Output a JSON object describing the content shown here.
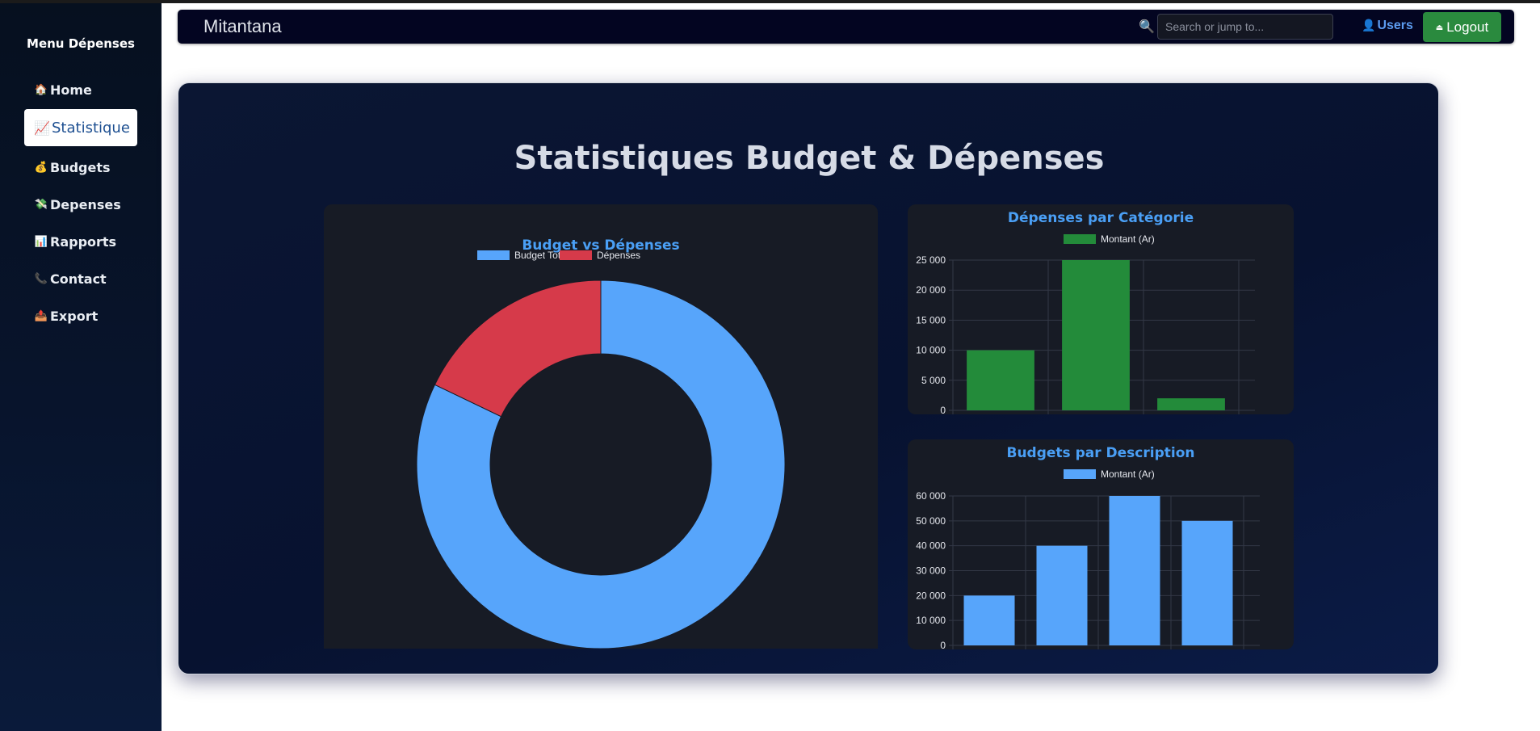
{
  "sidebar": {
    "title": "Menu Dépenses",
    "items": [
      {
        "icon": "house-icon",
        "glyph": "🏠",
        "label": "Home",
        "active": false
      },
      {
        "icon": "chart-increasing-icon",
        "glyph": "📈",
        "label": "Statistique",
        "active": true
      },
      {
        "icon": "money-bag-icon",
        "glyph": "💰",
        "label": "Budgets",
        "active": false
      },
      {
        "icon": "money-with-wings-icon",
        "glyph": "💸",
        "label": "Depenses",
        "active": false
      },
      {
        "icon": "bar-chart-icon",
        "glyph": "📊",
        "label": "Rapports",
        "active": false
      },
      {
        "icon": "telephone-icon",
        "glyph": "📞",
        "label": "Contact",
        "active": false
      },
      {
        "icon": "outbox-icon",
        "glyph": "📤",
        "label": "Export",
        "active": false
      }
    ]
  },
  "navbar": {
    "brand": "Mitantana",
    "search_icon": "🔍",
    "search_placeholder": "Search or jump to...",
    "users_icon": "👤",
    "users_label": "Users",
    "logout_icon": "⏏",
    "logout_label": "Logout"
  },
  "main": {
    "title": "Statistiques Budget & Dépenses"
  },
  "colors": {
    "budget_blue": "#57a5fb",
    "depense_red": "#d63a4a",
    "category_green": "#238b3a",
    "title_blue": "#4a9ff5"
  },
  "chart_data": [
    {
      "type": "pie",
      "title": "Budget vs Dépenses",
      "legend_position": "top",
      "categories": [
        "Budget Total",
        "Dépenses"
      ],
      "values": [
        170000,
        37000
      ],
      "colors": [
        "#57a5fb",
        "#d63a4a"
      ]
    },
    {
      "type": "bar",
      "title": "Dépenses par Catégorie",
      "legend_position": "top",
      "series": [
        {
          "name": "Montant (Ar)",
          "values": [
            10000,
            25000,
            2000
          ]
        }
      ],
      "categories": [
        "",
        "",
        ""
      ],
      "yticks": [
        "0",
        "5 000",
        "10 000",
        "15 000",
        "20 000",
        "25 000"
      ],
      "ylim": [
        0,
        25000
      ],
      "grid": true,
      "color": "#238b3a"
    },
    {
      "type": "bar",
      "title": "Budgets par Description",
      "legend_position": "top",
      "series": [
        {
          "name": "Montant (Ar)",
          "values": [
            20000,
            40000,
            60000,
            50000
          ]
        }
      ],
      "categories": [
        "",
        "",
        "",
        ""
      ],
      "yticks": [
        "0",
        "10 000",
        "20 000",
        "30 000",
        "40 000",
        "50 000",
        "60 000"
      ],
      "ylim": [
        0,
        60000
      ],
      "grid": true,
      "color": "#57a5fb"
    }
  ]
}
